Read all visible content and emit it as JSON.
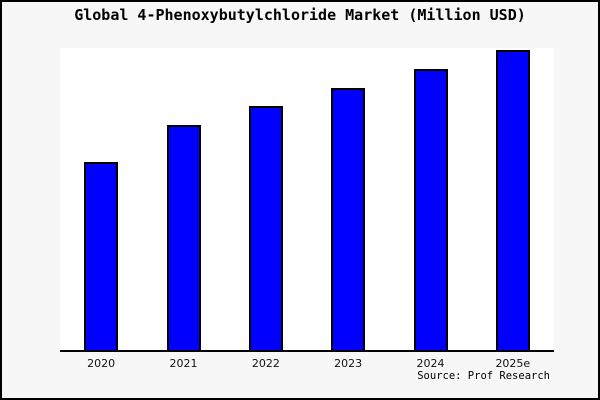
{
  "header": {
    "title": "Global 4-Phenoxybutylchloride Market (Million USD)"
  },
  "chart_data": {
    "type": "bar",
    "title": "Global 4-Phenoxybutylchloride Market (Million USD)",
    "categories": [
      "2020",
      "2021",
      "2022",
      "2023",
      "2024",
      "2025e"
    ],
    "values": [
      62.7,
      75.0,
      81.3,
      87.3,
      93.7,
      100.0
    ],
    "value_note": "relative units estimated from bar heights; y-axis has no tick labels",
    "xlabel": "",
    "ylabel": "",
    "ylim": [
      0,
      100
    ],
    "grid": false,
    "legend": false,
    "bar_fill_color": "#0000FE",
    "bar_edge_color": "#000000"
  },
  "footer": {
    "source": "Source: Prof Research"
  },
  "colors": {
    "figure_background": "#f7f7f7",
    "plot_background": "#ffffff",
    "outer_border": "#000000",
    "axis_line": "#000000",
    "bar_fill": "#0000FE",
    "bar_edge": "#000000",
    "title_text": "#000000",
    "tick_text": "#111111"
  }
}
